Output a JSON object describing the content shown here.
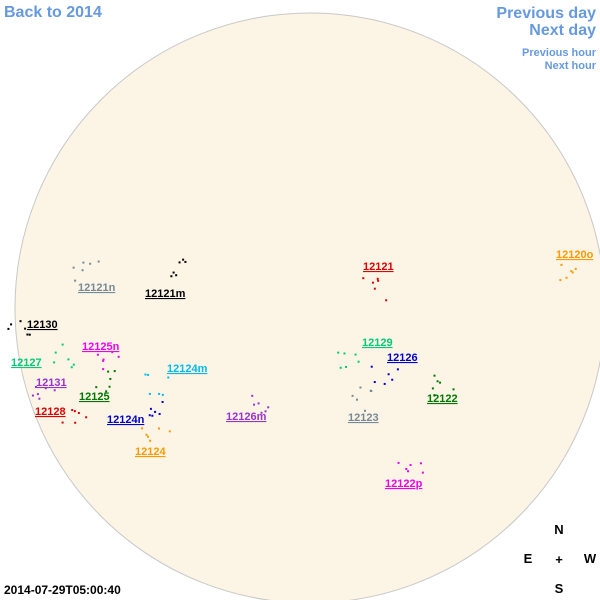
{
  "navigation": {
    "back": "Back to 2014",
    "previous_day": "Previous day",
    "next_day": "Next day",
    "previous_hour": "Previous hour",
    "next_hour": "Next hour"
  },
  "regions": [
    {
      "label": "12120o",
      "color": "#ff9900"
    },
    {
      "label": "12121",
      "color": "#dd0000"
    },
    {
      "label": "12121n",
      "color": "#778899"
    },
    {
      "label": "12121m",
      "color": "#000000"
    },
    {
      "label": "12130",
      "color": "#000000"
    },
    {
      "label": "12125n",
      "color": "#ee00ee"
    },
    {
      "label": "12127",
      "color": "#00cc77"
    },
    {
      "label": "12129",
      "color": "#00cc77"
    },
    {
      "label": "12126",
      "color": "#0000cc"
    },
    {
      "label": "12124m",
      "color": "#00bbee"
    },
    {
      "label": "12131",
      "color": "#9933cc"
    },
    {
      "label": "12125",
      "color": "#007700"
    },
    {
      "label": "12122",
      "color": "#007700"
    },
    {
      "label": "12128",
      "color": "#dd0000"
    },
    {
      "label": "12124n",
      "color": "#0000cc"
    },
    {
      "label": "12126m",
      "color": "#9933cc"
    },
    {
      "label": "12123",
      "color": "#778899"
    },
    {
      "label": "12124",
      "color": "#ff9900"
    },
    {
      "label": "12122p",
      "color": "#ee00ee"
    }
  ],
  "timestamp": "2014-07-29T05:00:40",
  "compass": {
    "north": "N",
    "east": "E",
    "center": "+",
    "west": "W",
    "south": "S"
  }
}
